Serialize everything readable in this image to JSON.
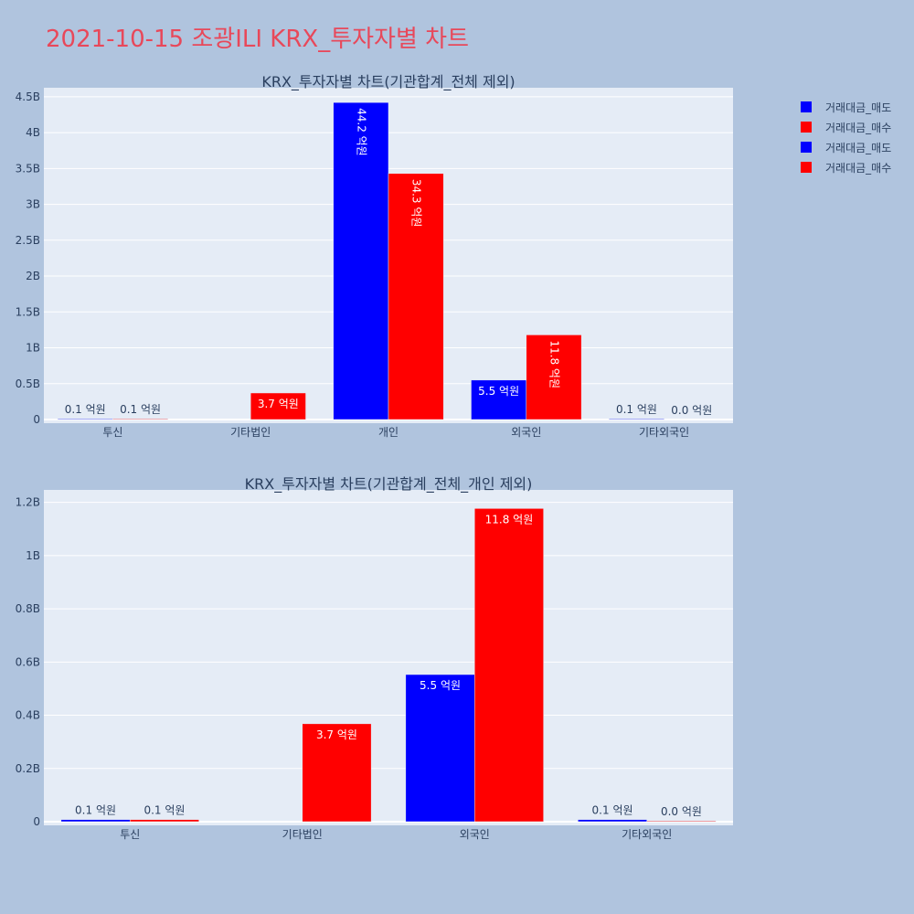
{
  "page": {
    "title": "2021-10-15 조광ILI KRX_투자자별 차트"
  },
  "legend": {
    "items": [
      {
        "label": "거래대금_매도",
        "color": "#0000ff"
      },
      {
        "label": "거래대금_매수",
        "color": "#ff0000"
      },
      {
        "label": "거래대금_매도",
        "color": "#0000ff"
      },
      {
        "label": "거래대금_매수",
        "color": "#ff0000"
      }
    ]
  },
  "chart_data": [
    {
      "type": "bar",
      "title": "KRX_투자자별 차트(기관합계_전체 제외)",
      "categories": [
        "투신",
        "기타법인",
        "개인",
        "외국인",
        "기타외국인"
      ],
      "ylim": [
        0,
        4.6
      ],
      "y_unit": "B",
      "yticks": [
        {
          "v": 0,
          "label": "0"
        },
        {
          "v": 0.5,
          "label": "0.5B"
        },
        {
          "v": 1,
          "label": "1B"
        },
        {
          "v": 1.5,
          "label": "1.5B"
        },
        {
          "v": 2,
          "label": "2B"
        },
        {
          "v": 2.5,
          "label": "2.5B"
        },
        {
          "v": 3,
          "label": "3B"
        },
        {
          "v": 3.5,
          "label": "3.5B"
        },
        {
          "v": 4,
          "label": "4B"
        },
        {
          "v": 4.5,
          "label": "4.5B"
        }
      ],
      "series": [
        {
          "name": "거래대금_매도",
          "color": "#0000ff",
          "values": [
            0.01,
            0,
            4.42,
            0.55,
            0.01
          ],
          "labels": [
            "0.1 억원",
            "",
            "44.2 억원",
            "5.5 억원",
            "0.1 억원"
          ]
        },
        {
          "name": "거래대금_매수",
          "color": "#ff0000",
          "values": [
            0.01,
            0.37,
            3.43,
            1.18,
            0.0
          ],
          "labels": [
            "0.1 억원",
            "3.7 억원",
            "34.3 억원",
            "11.8 억원",
            "0.0 억원"
          ]
        }
      ],
      "grid": true
    },
    {
      "type": "bar",
      "title": "KRX_투자자별 차트(기관합계_전체_개인 제외)",
      "categories": [
        "투신",
        "기타법인",
        "외국인",
        "기타외국인"
      ],
      "ylim": [
        0,
        1.24
      ],
      "y_unit": "B",
      "yticks": [
        {
          "v": 0,
          "label": "0"
        },
        {
          "v": 0.2,
          "label": "0.2B"
        },
        {
          "v": 0.4,
          "label": "0.4B"
        },
        {
          "v": 0.6,
          "label": "0.6B"
        },
        {
          "v": 0.8,
          "label": "0.8B"
        },
        {
          "v": 1,
          "label": "1B"
        },
        {
          "v": 1.2,
          "label": "1.2B"
        }
      ],
      "series": [
        {
          "name": "거래대금_매도",
          "color": "#0000ff",
          "values": [
            0.008,
            0,
            0.553,
            0.008
          ],
          "labels": [
            "0.1 억원",
            "",
            "5.5 억원",
            "0.1 억원"
          ]
        },
        {
          "name": "거래대금_매수",
          "color": "#ff0000",
          "values": [
            0.008,
            0.368,
            1.177,
            0.003
          ],
          "labels": [
            "0.1 억원",
            "3.7 억원",
            "11.8 억원",
            "0.0 억원"
          ]
        }
      ],
      "grid": true
    }
  ]
}
